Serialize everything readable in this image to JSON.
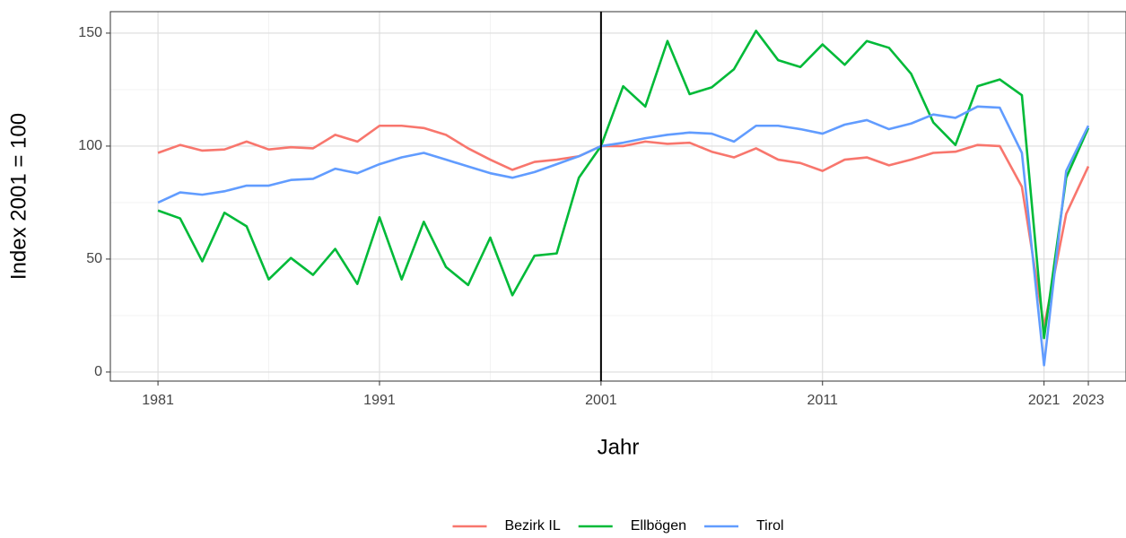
{
  "chart_data": {
    "type": "line",
    "x_label": "Jahr",
    "y_label": "Index 2001 = 100",
    "x": [
      1981,
      1982,
      1983,
      1984,
      1985,
      1986,
      1987,
      1988,
      1989,
      1990,
      1991,
      1992,
      1993,
      1994,
      1995,
      1996,
      1997,
      1998,
      1999,
      2000,
      2001,
      2002,
      2003,
      2004,
      2005,
      2006,
      2007,
      2008,
      2009,
      2010,
      2011,
      2012,
      2013,
      2014,
      2015,
      2016,
      2017,
      2018,
      2019,
      2020,
      2021,
      2022,
      2023
    ],
    "series": [
      {
        "name": "Bezirk IL",
        "color": "#F8766D",
        "values": [
          97,
          100.5,
          98,
          98.5,
          102,
          98.5,
          99.5,
          99,
          105,
          102,
          109,
          109,
          108,
          105,
          99,
          94,
          89.5,
          93,
          94,
          95.5,
          100,
          100,
          102,
          101,
          101.5,
          97.5,
          95,
          99,
          94,
          92.5,
          89,
          94,
          95,
          91.5,
          94,
          97,
          97.5,
          100.5,
          100,
          82,
          20,
          70,
          91
        ]
      },
      {
        "name": "Ellbögen",
        "color": "#00BA38",
        "values": [
          71.5,
          68,
          49,
          70.5,
          64.5,
          41,
          50.5,
          43,
          54.5,
          39,
          68.5,
          41,
          66.5,
          46.5,
          38.5,
          59.5,
          34,
          51.5,
          52.5,
          86,
          100,
          126.5,
          117.5,
          146.5,
          123,
          126,
          134,
          151,
          138,
          135,
          145,
          136,
          146.5,
          143.5,
          132,
          110.5,
          100.5,
          126.5,
          129.5,
          122.5,
          15,
          86,
          108
        ]
      },
      {
        "name": "Tirol",
        "color": "#619CFF",
        "values": [
          75,
          79.5,
          78.5,
          80,
          82.5,
          82.5,
          85,
          85.5,
          90,
          88,
          92,
          95,
          97,
          94,
          91,
          88,
          86,
          88.5,
          92,
          95.5,
          100,
          101.5,
          103.5,
          105,
          106,
          105.5,
          102,
          109,
          109,
          107.5,
          105.5,
          109.5,
          111.5,
          107.5,
          110,
          114,
          112.5,
          117.5,
          117,
          97,
          3,
          89,
          109
        ]
      }
    ],
    "xlim": [
      1978.85,
      2024.7
    ],
    "xticks": [
      1981,
      1991,
      2001,
      2011,
      2021,
      2023
    ],
    "ylim": [
      -4,
      159.5
    ],
    "yticks": [
      0,
      50,
      100,
      150
    ],
    "vline": 2001,
    "grid": true,
    "legend": "bottom"
  }
}
